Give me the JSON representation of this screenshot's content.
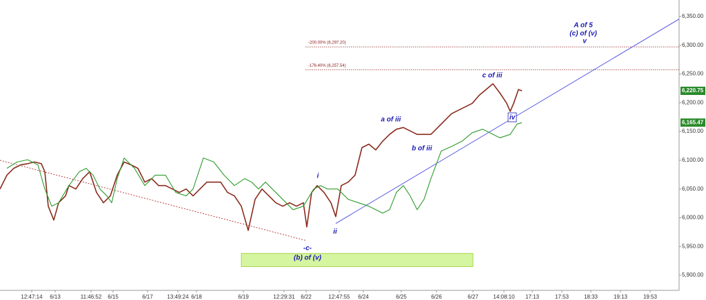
{
  "chart_data": {
    "type": "line",
    "xlim": [
      0,
      197
    ],
    "ylim": [
      5880,
      6380
    ],
    "yticks": [
      {
        "value": 5900,
        "label": "5,900.00"
      },
      {
        "value": 5950,
        "label": "5,950.00"
      },
      {
        "value": 6000,
        "label": "6,000.00"
      },
      {
        "value": 6050,
        "label": "6,050.00"
      },
      {
        "value": 6100,
        "label": "6,100.00"
      },
      {
        "value": 6150,
        "label": "6,150.00"
      },
      {
        "value": 6200,
        "label": "6,200.00"
      },
      {
        "value": 6250,
        "label": "6,250.00"
      },
      {
        "value": 6300,
        "label": "6,300.00"
      },
      {
        "value": 6350,
        "label": "6,350.00"
      }
    ],
    "xticks": [
      {
        "value": 9.2,
        "label": "12:47:14"
      },
      {
        "value": 16,
        "label": "6/13"
      },
      {
        "value": 26.4,
        "label": "11:46:52"
      },
      {
        "value": 32.8,
        "label": "6/15"
      },
      {
        "value": 42.8,
        "label": "6/17"
      },
      {
        "value": 51.6,
        "label": "13:49:24"
      },
      {
        "value": 57,
        "label": "6/18"
      },
      {
        "value": 70.6,
        "label": "6/19"
      },
      {
        "value": 82.4,
        "label": "12:29:31"
      },
      {
        "value": 88.8,
        "label": "6/22"
      },
      {
        "value": 98.4,
        "label": "12:47:55"
      },
      {
        "value": 105.4,
        "label": "6/24"
      },
      {
        "value": 116.4,
        "label": "6/25"
      },
      {
        "value": 126.6,
        "label": "6/26"
      },
      {
        "value": 137.2,
        "label": "6/27"
      },
      {
        "value": 146.2,
        "label": "14:08:10"
      },
      {
        "value": 154.4,
        "label": "17:13"
      },
      {
        "value": 163,
        "label": "17:53"
      },
      {
        "value": 171.4,
        "label": "18:33"
      },
      {
        "value": 180,
        "label": "19:13"
      },
      {
        "value": 188.6,
        "label": "19:53"
      }
    ],
    "series": [
      {
        "color": "#8a2a1c",
        "x": [
          0,
          2,
          4,
          6,
          8,
          10,
          12,
          13,
          14,
          15.6,
          17,
          19,
          20,
          22,
          24,
          26,
          28,
          30,
          32,
          34,
          36,
          38,
          40,
          42,
          44,
          46,
          48,
          50,
          52,
          54,
          56,
          58,
          60,
          62,
          64,
          66,
          68,
          70,
          72,
          74,
          76,
          78,
          80,
          82,
          84,
          86,
          88,
          89,
          90.4,
          92,
          94,
          96,
          97.4,
          99,
          101,
          103,
          105,
          107,
          109,
          111,
          113,
          115,
          117,
          119,
          121,
          123,
          125,
          127,
          129,
          131,
          133,
          135,
          137,
          139,
          141,
          143,
          145,
          147,
          148,
          149,
          150.4,
          151.4
        ],
        "values": [
          6050,
          6074,
          6086,
          6092,
          6094,
          6097,
          6094,
          6080,
          6020,
          5996,
          6026,
          6038,
          6056,
          6050,
          6068,
          6080,
          6044,
          6026,
          6038,
          6074,
          6097,
          6092,
          6086,
          6062,
          6068,
          6056,
          6056,
          6050,
          6044,
          6050,
          6038,
          6050,
          6062,
          6062,
          6062,
          6044,
          6038,
          6020,
          5978,
          6032,
          6050,
          6038,
          6026,
          6020,
          6026,
          6020,
          6026,
          5984,
          6044,
          6056,
          6044,
          6026,
          6002,
          6056,
          6062,
          6074,
          6122,
          6128,
          6118,
          6133,
          6145,
          6154,
          6157,
          6151,
          6145,
          6145,
          6145,
          6157,
          6169,
          6181,
          6187,
          6193,
          6199,
          6213,
          6223,
          6233,
          6217,
          6199,
          6185,
          6199,
          6223,
          6220.75
        ]
      },
      {
        "color": "#2e9b2e",
        "x": [
          2,
          5,
          8,
          11,
          13,
          15,
          17,
          20,
          23,
          25,
          27,
          29,
          31,
          32.4,
          34,
          36,
          39,
          42,
          45,
          48,
          51,
          54,
          56,
          59,
          62,
          65,
          68,
          71,
          73,
          75,
          77,
          79,
          82,
          85,
          88,
          91,
          93,
          95,
          98,
          101,
          104,
          107,
          109,
          111,
          113,
          115,
          117,
          119,
          121,
          123,
          125,
          128,
          131,
          134,
          137,
          140,
          143,
          145,
          148,
          150,
          151.4
        ],
        "values": [
          6086,
          6097,
          6101,
          6092,
          6050,
          6020,
          6026,
          6056,
          6080,
          6086,
          6074,
          6050,
          6038,
          6026,
          6068,
          6104,
          6086,
          6056,
          6074,
          6074,
          6044,
          6038,
          6050,
          6104,
          6097,
          6074,
          6056,
          6068,
          6062,
          6050,
          6062,
          6050,
          6032,
          6014,
          6020,
          6050,
          6056,
          6050,
          6050,
          6032,
          6026,
          6020,
          6014,
          6008,
          6014,
          6044,
          6056,
          6038,
          6014,
          6032,
          6068,
          6116,
          6124,
          6133,
          6148,
          6154,
          6145,
          6139,
          6145,
          6163,
          6165.47
        ]
      }
    ],
    "trendlines": [
      {
        "color": "#b03030",
        "dash": true,
        "x": [
          0,
          89
        ],
        "values": [
          6100,
          5960
        ]
      },
      {
        "color": "#4a4ae0",
        "dash": false,
        "x": [
          97.4,
          197
        ],
        "values": [
          5990,
          6345.6
        ]
      }
    ],
    "levels": [
      {
        "value": 6297.2,
        "label": "-200.00% (6,297.20)",
        "x": [
          88.6,
          197
        ]
      },
      {
        "value": 6257.54,
        "label": "-176.40% (6,257.54)",
        "x": [
          88.6,
          197
        ]
      }
    ],
    "zone": {
      "x": [
        70,
        137.2
      ],
      "values": [
        5938,
        5915
      ],
      "color": "#d6f5a0"
    },
    "price_labels": [
      {
        "value": 6220.75,
        "label": "6,220.75",
        "color": "#2a8a2a"
      },
      {
        "value": 6165.47,
        "label": "6,165.47",
        "color": "#2a8a2a"
      }
    ],
    "annotations": [
      "A of 5",
      "(c) of (v)",
      "v",
      "c of iii",
      "a of iii",
      "b of iii",
      "iv",
      "i",
      "ii",
      "-c-",
      "(b) of (v)"
    ]
  }
}
